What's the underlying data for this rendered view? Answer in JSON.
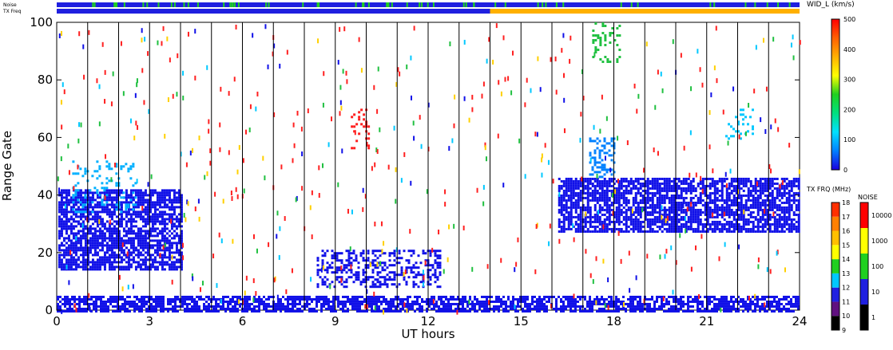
{
  "chart_data": {
    "type": "heatmap",
    "title": "",
    "xlabel": "UT hours",
    "ylabel": "Range Gate",
    "xlim": [
      0,
      24
    ],
    "ylim": [
      0,
      100
    ],
    "x_ticks": [
      "0",
      "3",
      "6",
      "9",
      "12",
      "15",
      "18",
      "21",
      "24"
    ],
    "y_ticks": [
      "0",
      "20",
      "40",
      "60",
      "80",
      "100"
    ],
    "hour_gridlines": [
      1,
      2,
      3,
      4,
      5,
      6,
      7,
      8,
      9,
      10,
      11,
      12,
      13,
      14,
      15,
      16,
      17,
      18,
      19,
      20,
      21,
      22,
      23
    ],
    "top_bars": {
      "noise_label": "Noise",
      "txfreq_label": "TX Freq",
      "noise_segments": [
        {
          "from": 0,
          "to": 24,
          "color": "#2020e0"
        }
      ],
      "txfreq_segments": [
        {
          "from": 0,
          "to": 14,
          "color": "#2020e0"
        },
        {
          "from": 14,
          "to": 24,
          "color": "#ffb000"
        }
      ]
    },
    "echo_regions": [
      {
        "x0": 0.05,
        "x1": 4.05,
        "y0": 14,
        "y1": 42,
        "fill": "#1010e8",
        "density": "dense"
      },
      {
        "x0": 0.5,
        "x1": 2.6,
        "y0": 34,
        "y1": 52,
        "fill": "#00b0ff",
        "density": "sparse"
      },
      {
        "x0": 8.4,
        "x1": 12.4,
        "y0": 8,
        "y1": 21,
        "fill": "#1010e8",
        "density": "medium"
      },
      {
        "x0": 9.5,
        "x1": 10.1,
        "y0": 56,
        "y1": 70,
        "fill": "#ff2020",
        "density": "sparse"
      },
      {
        "x0": 17.2,
        "x1": 18.0,
        "y0": 46,
        "y1": 60,
        "fill": "#0080ff",
        "density": "medium"
      },
      {
        "x0": 17.3,
        "x1": 18.2,
        "y0": 86,
        "y1": 100,
        "fill": "#20c040",
        "density": "sparse"
      },
      {
        "x0": 16.2,
        "x1": 24.0,
        "y0": 27,
        "y1": 46,
        "fill": "#1010e8",
        "density": "dense"
      },
      {
        "x0": 21.6,
        "x1": 22.5,
        "y0": 60,
        "y1": 70,
        "fill": "#00c8ff",
        "density": "sparse"
      },
      {
        "x0": 0.0,
        "x1": 24.0,
        "y0": 0,
        "y1": 5,
        "fill": "#1010e8",
        "density": "dense"
      }
    ],
    "colorbars": [
      {
        "label": "WID_L (km/s)",
        "ticks": [
          "0",
          "100",
          "200",
          "300",
          "400",
          "500"
        ],
        "stops": [
          "#1a00e0",
          "#0080ff",
          "#00e0ff",
          "#00e080",
          "#20d020",
          "#ffff00",
          "#ffb000",
          "#ff6000",
          "#ff0000"
        ]
      },
      {
        "label": "TX FRQ (MHz)",
        "ticks": [
          "9",
          "10",
          "11",
          "12",
          "13",
          "14",
          "15",
          "16",
          "17",
          "18"
        ],
        "bands": [
          "#000000",
          "#601080",
          "#2020e0",
          "#00c8ff",
          "#20d020",
          "#ffff00",
          "#ffc000",
          "#ff8000",
          "#ff3000"
        ]
      },
      {
        "label": "NOISE",
        "ticks": [
          "1",
          "10",
          "100",
          "1000",
          "10000"
        ],
        "bands": [
          "#000000",
          "#2020e0",
          "#20d020",
          "#ffff00",
          "#ff0000"
        ]
      }
    ]
  }
}
